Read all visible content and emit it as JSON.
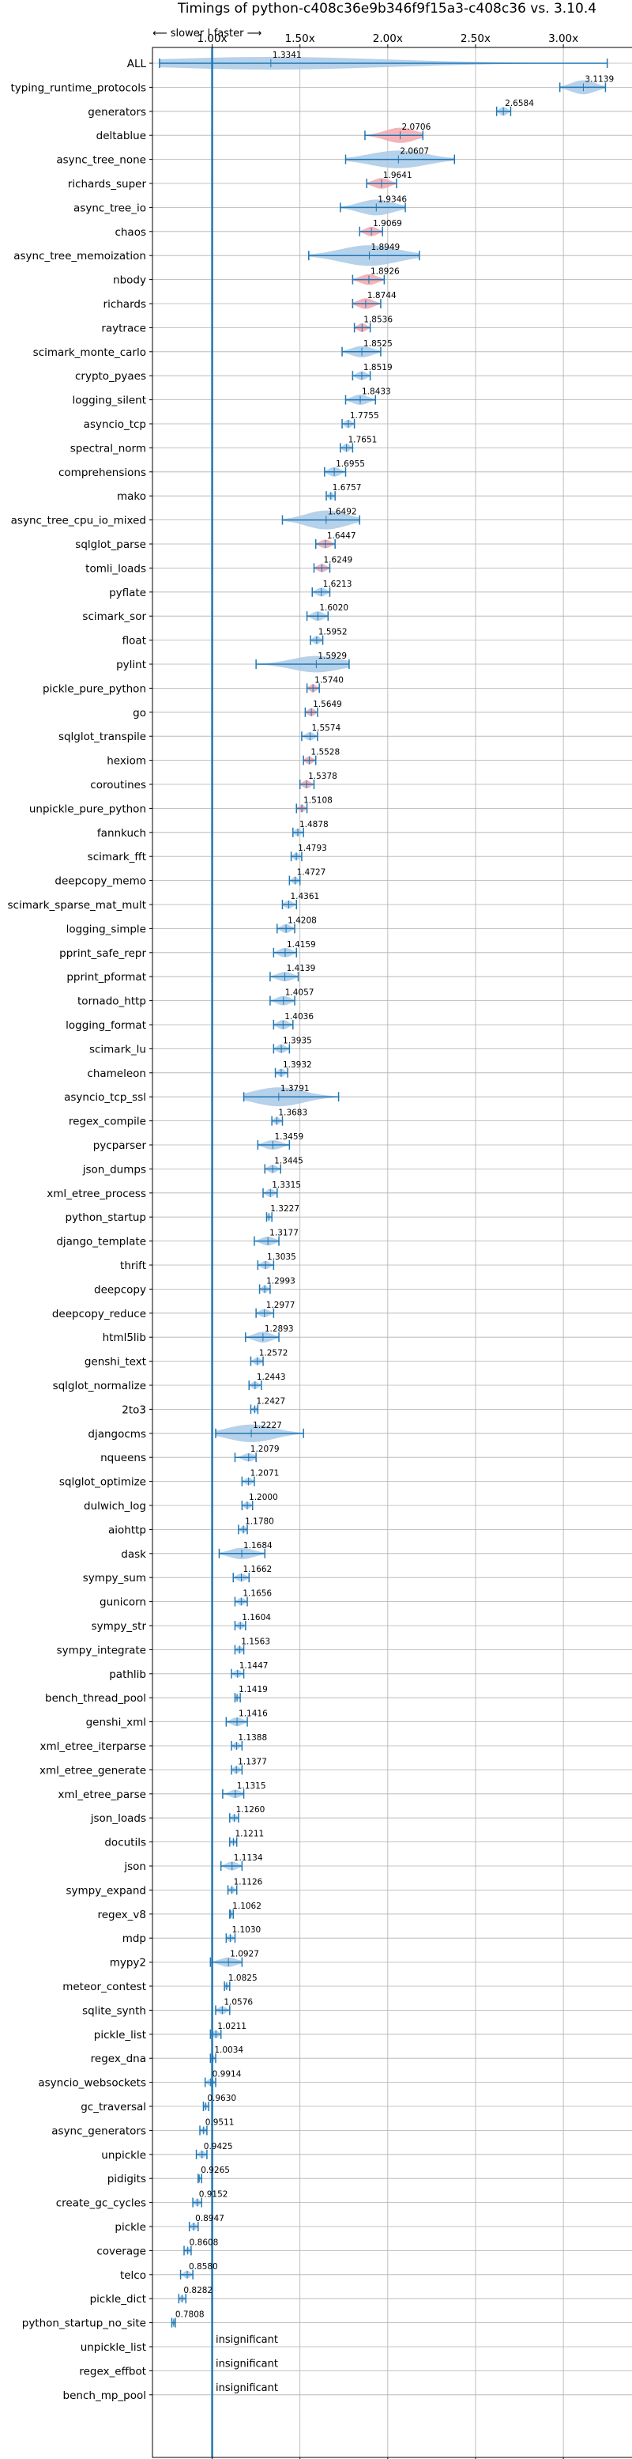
{
  "chart_data": {
    "type": "violin",
    "title": "Timings of python-c408c36e9b346f9f15a3-c408c36 vs. 3.10.4",
    "direction_note": "⟵ slower | faster ⟶",
    "xlim": [
      0.66,
      3.4
    ],
    "xticks": [
      1.0,
      1.5,
      2.0,
      2.5,
      3.0
    ],
    "xtick_labels": [
      "1.00x",
      "1.50x",
      "2.00x",
      "2.50x",
      "3.00x"
    ],
    "grid": true,
    "reference_line": 1.0,
    "colors": {
      "faster": "#a9c9e6",
      "slower": "#f2a6ab",
      "line": "#1f77b4",
      "grid": "#b0b0b0"
    },
    "insignificant_label": "insignificant",
    "benchmarks": [
      {
        "name": "ALL",
        "value": 1.3341,
        "label": "1.3341",
        "min": 0.7,
        "max": 3.25,
        "spread": 0.1
      },
      {
        "name": "typing_runtime_protocols",
        "value": 3.1139,
        "label": "3.1139",
        "min": 2.98,
        "max": 3.24,
        "spread": 0.12
      },
      {
        "name": "generators",
        "value": 2.6584,
        "label": "2.6584",
        "min": 2.62,
        "max": 2.7,
        "spread": 0.04
      },
      {
        "name": "deltablue",
        "value": 2.0706,
        "label": "2.0706",
        "min": 1.87,
        "max": 2.2,
        "spread": 0.14
      },
      {
        "name": "async_tree_none",
        "value": 2.0607,
        "label": "2.0607",
        "min": 1.76,
        "max": 2.38,
        "spread": 0.18
      },
      {
        "name": "richards_super",
        "value": 1.9641,
        "label": "1.9641",
        "min": 1.88,
        "max": 2.05,
        "spread": 0.07
      },
      {
        "name": "async_tree_io",
        "value": 1.9346,
        "label": "1.9346",
        "min": 1.73,
        "max": 2.1,
        "spread": 0.15
      },
      {
        "name": "chaos",
        "value": 1.9069,
        "label": "1.9069",
        "min": 1.84,
        "max": 1.97,
        "spread": 0.05
      },
      {
        "name": "async_tree_memoization",
        "value": 1.8949,
        "label": "1.8949",
        "min": 1.55,
        "max": 2.18,
        "spread": 0.25
      },
      {
        "name": "nbody",
        "value": 1.8926,
        "label": "1.8926",
        "min": 1.8,
        "max": 1.98,
        "spread": 0.07
      },
      {
        "name": "richards",
        "value": 1.8744,
        "label": "1.8744",
        "min": 1.8,
        "max": 1.96,
        "spread": 0.07
      },
      {
        "name": "raytrace",
        "value": 1.8536,
        "label": "1.8536",
        "min": 1.81,
        "max": 1.9,
        "spread": 0.04
      },
      {
        "name": "scimark_monte_carlo",
        "value": 1.8525,
        "label": "1.8525",
        "min": 1.74,
        "max": 1.96,
        "spread": 0.08
      },
      {
        "name": "crypto_pyaes",
        "value": 1.8519,
        "label": "1.8519",
        "min": 1.8,
        "max": 1.9,
        "spread": 0.04
      },
      {
        "name": "logging_silent",
        "value": 1.8433,
        "label": "1.8433",
        "min": 1.76,
        "max": 1.93,
        "spread": 0.06
      },
      {
        "name": "asyncio_tcp",
        "value": 1.7755,
        "label": "1.7755",
        "min": 1.74,
        "max": 1.81,
        "spread": 0.03
      },
      {
        "name": "spectral_norm",
        "value": 1.7651,
        "label": "1.7651",
        "min": 1.73,
        "max": 1.8,
        "spread": 0.03
      },
      {
        "name": "comprehensions",
        "value": 1.6955,
        "label": "1.6955",
        "min": 1.64,
        "max": 1.76,
        "spread": 0.05
      },
      {
        "name": "mako",
        "value": 1.6757,
        "label": "1.6757",
        "min": 1.65,
        "max": 1.7,
        "spread": 0.02
      },
      {
        "name": "async_tree_cpu_io_mixed",
        "value": 1.6492,
        "label": "1.6492",
        "min": 1.4,
        "max": 1.84,
        "spread": 0.2
      },
      {
        "name": "sqlglot_parse",
        "value": 1.6447,
        "label": "1.6447",
        "min": 1.59,
        "max": 1.7,
        "spread": 0.04
      },
      {
        "name": "tomli_loads",
        "value": 1.6249,
        "label": "1.6249",
        "min": 1.58,
        "max": 1.67,
        "spread": 0.03
      },
      {
        "name": "pyflate",
        "value": 1.6213,
        "label": "1.6213",
        "min": 1.57,
        "max": 1.67,
        "spread": 0.04
      },
      {
        "name": "scimark_sor",
        "value": 1.602,
        "label": "1.6020",
        "min": 1.54,
        "max": 1.66,
        "spread": 0.05
      },
      {
        "name": "float",
        "value": 1.5952,
        "label": "1.5952",
        "min": 1.56,
        "max": 1.63,
        "spread": 0.03
      },
      {
        "name": "pylint",
        "value": 1.5929,
        "label": "1.5929",
        "min": 1.25,
        "max": 1.78,
        "spread": 0.16
      },
      {
        "name": "pickle_pure_python",
        "value": 1.574,
        "label": "1.5740",
        "min": 1.54,
        "max": 1.61,
        "spread": 0.03
      },
      {
        "name": "go",
        "value": 1.5649,
        "label": "1.5649",
        "min": 1.53,
        "max": 1.6,
        "spread": 0.03
      },
      {
        "name": "sqlglot_transpile",
        "value": 1.5574,
        "label": "1.5574",
        "min": 1.51,
        "max": 1.6,
        "spread": 0.03
      },
      {
        "name": "hexiom",
        "value": 1.5528,
        "label": "1.5528",
        "min": 1.52,
        "max": 1.59,
        "spread": 0.03
      },
      {
        "name": "coroutines",
        "value": 1.5378,
        "label": "1.5378",
        "min": 1.5,
        "max": 1.58,
        "spread": 0.03
      },
      {
        "name": "unpickle_pure_python",
        "value": 1.5108,
        "label": "1.5108",
        "min": 1.48,
        "max": 1.54,
        "spread": 0.02
      },
      {
        "name": "fannkuch",
        "value": 1.4878,
        "label": "1.4878",
        "min": 1.46,
        "max": 1.52,
        "spread": 0.02
      },
      {
        "name": "scimark_fft",
        "value": 1.4793,
        "label": "1.4793",
        "min": 1.45,
        "max": 1.51,
        "spread": 0.02
      },
      {
        "name": "deepcopy_memo",
        "value": 1.4727,
        "label": "1.4727",
        "min": 1.44,
        "max": 1.5,
        "spread": 0.02
      },
      {
        "name": "scimark_sparse_mat_mult",
        "value": 1.4361,
        "label": "1.4361",
        "min": 1.4,
        "max": 1.48,
        "spread": 0.03
      },
      {
        "name": "logging_simple",
        "value": 1.4208,
        "label": "1.4208",
        "min": 1.37,
        "max": 1.47,
        "spread": 0.04
      },
      {
        "name": "pprint_safe_repr",
        "value": 1.4159,
        "label": "1.4159",
        "min": 1.35,
        "max": 1.48,
        "spread": 0.05
      },
      {
        "name": "pprint_pformat",
        "value": 1.4139,
        "label": "1.4139",
        "min": 1.33,
        "max": 1.49,
        "spread": 0.05
      },
      {
        "name": "tornado_http",
        "value": 1.4057,
        "label": "1.4057",
        "min": 1.33,
        "max": 1.47,
        "spread": 0.05
      },
      {
        "name": "logging_format",
        "value": 1.4036,
        "label": "1.4036",
        "min": 1.35,
        "max": 1.46,
        "spread": 0.05
      },
      {
        "name": "scimark_lu",
        "value": 1.3935,
        "label": "1.3935",
        "min": 1.35,
        "max": 1.44,
        "spread": 0.04
      },
      {
        "name": "chameleon",
        "value": 1.3932,
        "label": "1.3932",
        "min": 1.36,
        "max": 1.43,
        "spread": 0.03
      },
      {
        "name": "asyncio_tcp_ssl",
        "value": 1.3791,
        "label": "1.3791",
        "min": 1.18,
        "max": 1.72,
        "spread": 0.2
      },
      {
        "name": "regex_compile",
        "value": 1.3683,
        "label": "1.3683",
        "min": 1.34,
        "max": 1.4,
        "spread": 0.02
      },
      {
        "name": "pycparser",
        "value": 1.3459,
        "label": "1.3459",
        "min": 1.26,
        "max": 1.44,
        "spread": 0.05
      },
      {
        "name": "json_dumps",
        "value": 1.3445,
        "label": "1.3445",
        "min": 1.3,
        "max": 1.39,
        "spread": 0.03
      },
      {
        "name": "xml_etree_process",
        "value": 1.3315,
        "label": "1.3315",
        "min": 1.29,
        "max": 1.37,
        "spread": 0.03
      },
      {
        "name": "python_startup",
        "value": 1.3227,
        "label": "1.3227",
        "min": 1.31,
        "max": 1.34,
        "spread": 0.01
      },
      {
        "name": "django_template",
        "value": 1.3177,
        "label": "1.3177",
        "min": 1.24,
        "max": 1.38,
        "spread": 0.04
      },
      {
        "name": "thrift",
        "value": 1.3035,
        "label": "1.3035",
        "min": 1.26,
        "max": 1.35,
        "spread": 0.03
      },
      {
        "name": "deepcopy",
        "value": 1.2993,
        "label": "1.2993",
        "min": 1.27,
        "max": 1.33,
        "spread": 0.02
      },
      {
        "name": "deepcopy_reduce",
        "value": 1.2977,
        "label": "1.2977",
        "min": 1.25,
        "max": 1.35,
        "spread": 0.03
      },
      {
        "name": "html5lib",
        "value": 1.2893,
        "label": "1.2893",
        "min": 1.19,
        "max": 1.38,
        "spread": 0.07
      },
      {
        "name": "genshi_text",
        "value": 1.2572,
        "label": "1.2572",
        "min": 1.22,
        "max": 1.29,
        "spread": 0.02
      },
      {
        "name": "sqlglot_normalize",
        "value": 1.2443,
        "label": "1.2443",
        "min": 1.21,
        "max": 1.28,
        "spread": 0.02
      },
      {
        "name": "2to3",
        "value": 1.2427,
        "label": "1.2427",
        "min": 1.22,
        "max": 1.26,
        "spread": 0.01
      },
      {
        "name": "djangocms",
        "value": 1.2227,
        "label": "1.2227",
        "min": 1.02,
        "max": 1.52,
        "spread": 0.18
      },
      {
        "name": "nqueens",
        "value": 1.2079,
        "label": "1.2079",
        "min": 1.13,
        "max": 1.25,
        "spread": 0.03
      },
      {
        "name": "sqlglot_optimize",
        "value": 1.2071,
        "label": "1.2071",
        "min": 1.17,
        "max": 1.24,
        "spread": 0.02
      },
      {
        "name": "dulwich_log",
        "value": 1.2,
        "label": "1.2000",
        "min": 1.17,
        "max": 1.23,
        "spread": 0.02
      },
      {
        "name": "aiohttp",
        "value": 1.178,
        "label": "1.1780",
        "min": 1.15,
        "max": 1.2,
        "spread": 0.02
      },
      {
        "name": "dask",
        "value": 1.1684,
        "label": "1.1684",
        "min": 1.04,
        "max": 1.3,
        "spread": 0.08
      },
      {
        "name": "sympy_sum",
        "value": 1.1662,
        "label": "1.1662",
        "min": 1.12,
        "max": 1.21,
        "spread": 0.03
      },
      {
        "name": "gunicorn",
        "value": 1.1656,
        "label": "1.1656",
        "min": 1.13,
        "max": 1.2,
        "spread": 0.02
      },
      {
        "name": "sympy_str",
        "value": 1.1604,
        "label": "1.1604",
        "min": 1.13,
        "max": 1.19,
        "spread": 0.02
      },
      {
        "name": "sympy_integrate",
        "value": 1.1563,
        "label": "1.1563",
        "min": 1.13,
        "max": 1.18,
        "spread": 0.02
      },
      {
        "name": "pathlib",
        "value": 1.1447,
        "label": "1.1447",
        "min": 1.11,
        "max": 1.18,
        "spread": 0.02
      },
      {
        "name": "bench_thread_pool",
        "value": 1.1419,
        "label": "1.1419",
        "min": 1.13,
        "max": 1.16,
        "spread": 0.01
      },
      {
        "name": "genshi_xml",
        "value": 1.1416,
        "label": "1.1416",
        "min": 1.08,
        "max": 1.2,
        "spread": 0.04
      },
      {
        "name": "xml_etree_iterparse",
        "value": 1.1388,
        "label": "1.1388",
        "min": 1.11,
        "max": 1.17,
        "spread": 0.02
      },
      {
        "name": "xml_etree_generate",
        "value": 1.1377,
        "label": "1.1377",
        "min": 1.11,
        "max": 1.17,
        "spread": 0.02
      },
      {
        "name": "xml_etree_parse",
        "value": 1.1315,
        "label": "1.1315",
        "min": 1.06,
        "max": 1.18,
        "spread": 0.03
      },
      {
        "name": "json_loads",
        "value": 1.126,
        "label": "1.1260",
        "min": 1.1,
        "max": 1.15,
        "spread": 0.02
      },
      {
        "name": "docutils",
        "value": 1.1211,
        "label": "1.1211",
        "min": 1.1,
        "max": 1.14,
        "spread": 0.01
      },
      {
        "name": "json",
        "value": 1.1134,
        "label": "1.1134",
        "min": 1.05,
        "max": 1.17,
        "spread": 0.04
      },
      {
        "name": "sympy_expand",
        "value": 1.1126,
        "label": "1.1126",
        "min": 1.09,
        "max": 1.14,
        "spread": 0.01
      },
      {
        "name": "regex_v8",
        "value": 1.1062,
        "label": "1.1062",
        "min": 1.1,
        "max": 1.12,
        "spread": 0.01
      },
      {
        "name": "mdp",
        "value": 1.103,
        "label": "1.1030",
        "min": 1.08,
        "max": 1.13,
        "spread": 0.02
      },
      {
        "name": "mypy2",
        "value": 1.0927,
        "label": "1.0927",
        "min": 0.99,
        "max": 1.17,
        "spread": 0.05
      },
      {
        "name": "meteor_contest",
        "value": 1.0825,
        "label": "1.0825",
        "min": 1.07,
        "max": 1.1,
        "spread": 0.01
      },
      {
        "name": "sqlite_synth",
        "value": 1.0576,
        "label": "1.0576",
        "min": 1.02,
        "max": 1.1,
        "spread": 0.03
      },
      {
        "name": "pickle_list",
        "value": 1.0211,
        "label": "1.0211",
        "min": 0.99,
        "max": 1.05,
        "spread": 0.02
      },
      {
        "name": "regex_dna",
        "value": 1.0034,
        "label": "1.0034",
        "min": 0.99,
        "max": 1.02,
        "spread": 0.01
      },
      {
        "name": "asyncio_websockets",
        "value": 0.9914,
        "label": "0.9914",
        "min": 0.96,
        "max": 1.02,
        "spread": 0.02
      },
      {
        "name": "gc_traversal",
        "value": 0.963,
        "label": "0.9630",
        "min": 0.95,
        "max": 0.98,
        "spread": 0.01
      },
      {
        "name": "async_generators",
        "value": 0.9511,
        "label": "0.9511",
        "min": 0.93,
        "max": 0.97,
        "spread": 0.01
      },
      {
        "name": "unpickle",
        "value": 0.9425,
        "label": "0.9425",
        "min": 0.91,
        "max": 0.97,
        "spread": 0.02
      },
      {
        "name": "pidigits",
        "value": 0.9265,
        "label": "0.9265",
        "min": 0.92,
        "max": 0.94,
        "spread": 0.005
      },
      {
        "name": "create_gc_cycles",
        "value": 0.9152,
        "label": "0.9152",
        "min": 0.89,
        "max": 0.94,
        "spread": 0.02
      },
      {
        "name": "pickle",
        "value": 0.8947,
        "label": "0.8947",
        "min": 0.87,
        "max": 0.92,
        "spread": 0.02
      },
      {
        "name": "coverage",
        "value": 0.8608,
        "label": "0.8608",
        "min": 0.84,
        "max": 0.88,
        "spread": 0.01
      },
      {
        "name": "telco",
        "value": 0.858,
        "label": "0.8580",
        "min": 0.82,
        "max": 0.89,
        "spread": 0.02
      },
      {
        "name": "pickle_dict",
        "value": 0.8282,
        "label": "0.8282",
        "min": 0.81,
        "max": 0.85,
        "spread": 0.01
      },
      {
        "name": "python_startup_no_site",
        "value": 0.7808,
        "label": "0.7808",
        "min": 0.77,
        "max": 0.79,
        "spread": 0.005
      },
      {
        "name": "unpickle_list",
        "value": null,
        "label": "insignificant"
      },
      {
        "name": "regex_effbot",
        "value": null,
        "label": "insignificant"
      },
      {
        "name": "bench_mp_pool",
        "value": null,
        "label": "insignificant"
      }
    ]
  }
}
